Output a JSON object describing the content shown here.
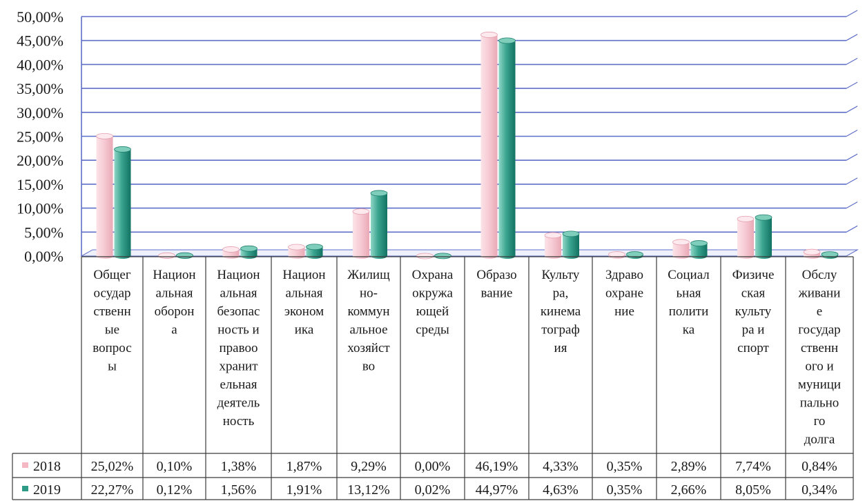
{
  "chart_data": {
    "type": "bar",
    "title": "",
    "xlabel": "",
    "ylabel": "",
    "ylim": [
      0,
      50
    ],
    "y_ticks": [
      "0,00%",
      "5,00%",
      "10,00%",
      "15,00%",
      "20,00%",
      "25,00%",
      "30,00%",
      "35,00%",
      "40,00%",
      "45,00%",
      "50,00%"
    ],
    "grid": true,
    "legend_placement": "data-table-left",
    "categories": [
      "Общегосударственные вопросы",
      "Национальная оборона",
      "Национальная безопасность и правоохранительная деятельность",
      "Национальная экономика",
      "Жилищно-коммунальное хозяйство",
      "Охрана окружающей среды",
      "Образование",
      "Культура, кинематография",
      "Здравоохранение",
      "Социальная политика",
      "Физическая культура и спорт",
      "Обслуживание государственного и муниципального долга"
    ],
    "category_lines": [
      [
        "Общег",
        "осудар",
        "ственн",
        "ые",
        "вопрос",
        "ы"
      ],
      [
        "Национ",
        "альная",
        "оборон",
        "а"
      ],
      [
        "Национ",
        "альная",
        "безопас",
        "ность и",
        "правоо",
        "хранит",
        "ельная",
        "деятель",
        "ность"
      ],
      [
        "Национ",
        "альная",
        "эконом",
        "ика"
      ],
      [
        "Жилищ",
        "но-",
        "коммун",
        "альное",
        "хозяйст",
        "во"
      ],
      [
        "Охрана",
        "окружа",
        "ющей",
        "среды"
      ],
      [
        "Образо",
        "вание"
      ],
      [
        "Культу",
        "ра,",
        "кинема",
        "тограф",
        "ия"
      ],
      [
        "Здраво",
        "охране",
        "ние"
      ],
      [
        "Социал",
        "ьная",
        "полити",
        "ка"
      ],
      [
        "Физиче",
        "ская",
        "культу",
        "ра и",
        "спорт"
      ],
      [
        "Обслу",
        "живани",
        "е",
        "государ",
        "ственн",
        "ого и",
        "муници",
        "пально",
        "го",
        "долга"
      ]
    ],
    "series": [
      {
        "name": "2018",
        "values": [
          25.02,
          0.1,
          1.38,
          1.87,
          9.29,
          0.0,
          46.19,
          4.33,
          0.35,
          2.89,
          7.74,
          0.84
        ],
        "labels": [
          "25,02%",
          "0,10%",
          "1,38%",
          "1,87%",
          "9,29%",
          "0,00%",
          "46,19%",
          "4,33%",
          "0,35%",
          "2,89%",
          "7,74%",
          "0,84%"
        ],
        "color": "#f4c6cf"
      },
      {
        "name": "2019",
        "values": [
          22.27,
          0.12,
          1.56,
          1.91,
          13.12,
          0.02,
          44.97,
          4.63,
          0.35,
          2.66,
          8.05,
          0.34
        ],
        "labels": [
          "22,27%",
          "0,12%",
          "1,56%",
          "1,91%",
          "13,12%",
          "0,02%",
          "44,97%",
          "4,63%",
          "0,35%",
          "2,66%",
          "8,05%",
          "0,34%"
        ],
        "color": "#2e9b86"
      }
    ],
    "colors": {
      "grid": "#5f6fc8",
      "border": "#3a3a3a"
    }
  }
}
